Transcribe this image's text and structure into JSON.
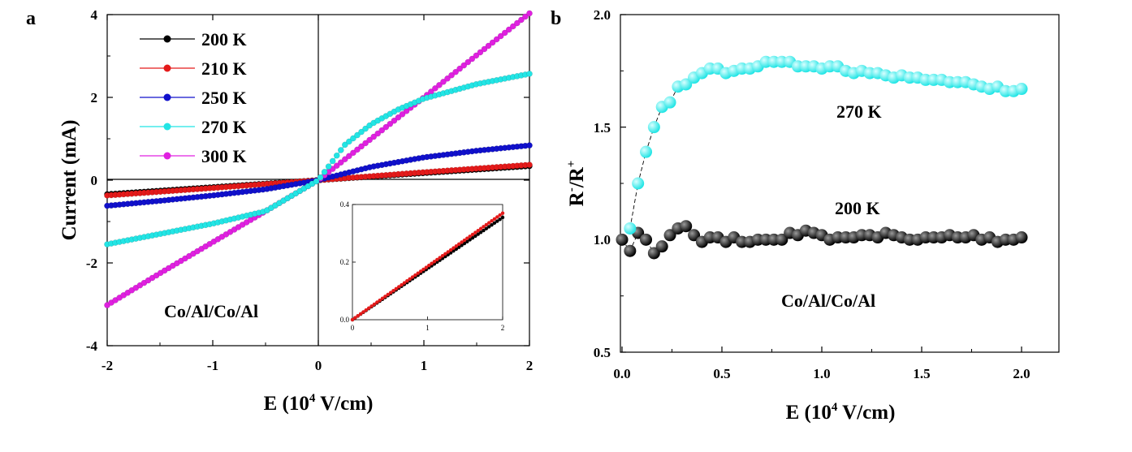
{
  "panels": [
    {
      "letter": "a",
      "annotation": "Co/Al/Co/Al",
      "xlabel_main": "E (10",
      "xlabel_sup": "4",
      "xlabel_tail": " V/cm)",
      "ylabel": "Current (mA)",
      "xticks": [
        "-2",
        "-1",
        "0",
        "1",
        "2"
      ],
      "yticks": [
        "4",
        "2",
        "0",
        "-2",
        "-4"
      ],
      "legend": [
        "200 K",
        "210 K",
        "250 K",
        "270 K",
        "300 K"
      ],
      "inset": {
        "xticks": [
          "0",
          "1",
          "2"
        ],
        "yticks": [
          "0.4",
          "0.2",
          "0.0"
        ]
      }
    },
    {
      "letter": "b",
      "ylabel_main": "R",
      "ylabel_sup1": "-",
      "ylabel_mid": "/R",
      "ylabel_sup2": "+",
      "xlabel_main": "E (10",
      "xlabel_sup": "4",
      "xlabel_tail": " V/cm)",
      "annotation": "Co/Al/Co/Al",
      "label_270": "270 K",
      "label_200": "200 K",
      "xticks": [
        "0.0",
        "0.5",
        "1.0",
        "1.5",
        "2.0"
      ],
      "yticks": [
        "2.0",
        "1.5",
        "1.0",
        "0.5"
      ]
    }
  ],
  "chart_data": [
    {
      "type": "scatter",
      "subplot": "a",
      "xlabel": "E (10^4 V/cm)",
      "ylabel": "Current (mA)",
      "xlim": [
        -2,
        2
      ],
      "ylim": [
        -4,
        4
      ],
      "legend_position": "top-left",
      "series": [
        {
          "name": "200 K",
          "color": "#000000",
          "x": [
            -2,
            0,
            2
          ],
          "y": [
            -0.34,
            0,
            0.34
          ]
        },
        {
          "name": "210 K",
          "color": "#e41a1a",
          "x": [
            -2,
            -1,
            0,
            1,
            2
          ],
          "y": [
            -0.37,
            -0.19,
            0,
            0.19,
            0.37
          ]
        },
        {
          "name": "250 K",
          "color": "#1010cc",
          "x": [
            -2,
            -1.5,
            -1,
            -0.5,
            0,
            0.5,
            1,
            1.5,
            2
          ],
          "y": [
            -0.62,
            -0.5,
            -0.37,
            -0.22,
            0,
            0.32,
            0.55,
            0.71,
            0.84
          ]
        },
        {
          "name": "270 K",
          "color": "#22e5e5",
          "x": [
            -2,
            -1.5,
            -1,
            -0.5,
            0,
            0.25,
            0.5,
            0.75,
            1,
            1.5,
            2
          ],
          "y": [
            -1.55,
            -1.3,
            -1.05,
            -0.75,
            0,
            0.85,
            1.35,
            1.7,
            1.97,
            2.32,
            2.57
          ],
          "markers": 104
        },
        {
          "name": "300 K",
          "color": "#e020e0",
          "x": [
            -2,
            -1.5,
            -1,
            -0.5,
            0,
            0.5,
            1,
            1.5,
            2
          ],
          "y": [
            -3.02,
            -2.25,
            -1.5,
            -0.75,
            0,
            1.0,
            2.0,
            3.02,
            4.03
          ]
        }
      ],
      "inset": {
        "xlim": [
          0,
          2
        ],
        "ylim": [
          0,
          0.4
        ],
        "series": [
          {
            "name": "200 K",
            "color": "#000000",
            "x": [
              0,
              2
            ],
            "y": [
              0,
              0.355
            ]
          },
          {
            "name": "210 K",
            "color": "#e41a1a",
            "x": [
              0,
              2
            ],
            "y": [
              0,
              0.37
            ]
          }
        ]
      }
    },
    {
      "type": "scatter",
      "subplot": "b",
      "xlabel": "E (10^4 V/cm)",
      "ylabel": "R-/R+",
      "xlim": [
        0,
        2.1
      ],
      "ylim": [
        0.5,
        2.0
      ],
      "series": [
        {
          "name": "270 K",
          "color": "#22e5e5",
          "x": [
            0.04,
            0.08,
            0.12,
            0.16,
            0.2,
            0.24,
            0.28,
            0.32,
            0.36,
            0.4,
            0.44,
            0.48,
            0.52,
            0.56,
            0.6,
            0.64,
            0.68,
            0.72,
            0.76,
            0.8,
            0.84,
            0.88,
            0.92,
            0.96,
            1.0,
            1.04,
            1.08,
            1.12,
            1.16,
            1.2,
            1.24,
            1.28,
            1.32,
            1.36,
            1.4,
            1.44,
            1.48,
            1.52,
            1.56,
            1.6,
            1.64,
            1.68,
            1.72,
            1.76,
            1.8,
            1.84,
            1.88,
            1.92,
            1.96,
            2.0
          ],
          "y": [
            1.05,
            1.25,
            1.39,
            1.5,
            1.59,
            1.61,
            1.68,
            1.69,
            1.72,
            1.74,
            1.76,
            1.76,
            1.74,
            1.75,
            1.76,
            1.76,
            1.77,
            1.79,
            1.79,
            1.79,
            1.79,
            1.77,
            1.77,
            1.77,
            1.76,
            1.77,
            1.77,
            1.75,
            1.74,
            1.75,
            1.74,
            1.74,
            1.73,
            1.72,
            1.73,
            1.72,
            1.72,
            1.71,
            1.71,
            1.71,
            1.7,
            1.7,
            1.7,
            1.69,
            1.68,
            1.67,
            1.68,
            1.66,
            1.66,
            1.67
          ]
        },
        {
          "name": "200 K",
          "color": "#000000",
          "x": [
            0.0,
            0.04,
            0.08,
            0.12,
            0.16,
            0.2,
            0.24,
            0.28,
            0.32,
            0.36,
            0.4,
            0.44,
            0.48,
            0.52,
            0.56,
            0.6,
            0.64,
            0.68,
            0.72,
            0.76,
            0.8,
            0.84,
            0.88,
            0.92,
            0.96,
            1.0,
            1.04,
            1.08,
            1.12,
            1.16,
            1.2,
            1.24,
            1.28,
            1.32,
            1.36,
            1.4,
            1.44,
            1.48,
            1.52,
            1.56,
            1.6,
            1.64,
            1.68,
            1.72,
            1.76,
            1.8,
            1.84,
            1.88,
            1.92,
            1.96,
            2.0
          ],
          "y": [
            1.0,
            0.95,
            1.03,
            1.0,
            0.94,
            0.97,
            1.02,
            1.05,
            1.06,
            1.02,
            0.99,
            1.01,
            1.01,
            0.99,
            1.01,
            0.99,
            0.99,
            1.0,
            1.0,
            1.0,
            1.0,
            1.03,
            1.02,
            1.04,
            1.03,
            1.02,
            1.0,
            1.01,
            1.01,
            1.01,
            1.02,
            1.02,
            1.01,
            1.03,
            1.02,
            1.01,
            1.0,
            1.0,
            1.01,
            1.01,
            1.01,
            1.02,
            1.01,
            1.01,
            1.02,
            1.0,
            1.01,
            0.99,
            1.0,
            1.0,
            1.01
          ]
        }
      ]
    }
  ]
}
